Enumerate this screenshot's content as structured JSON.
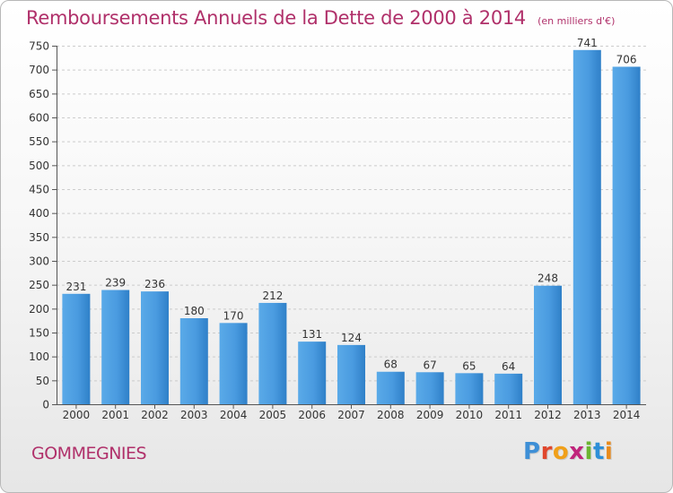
{
  "title": "Remboursements Annuels de la Dette de 2000 à 2014",
  "unit": "(en milliers d'€)",
  "town": "GOMMEGNIES",
  "logo": {
    "letters": [
      "P",
      "r",
      "o",
      "x",
      "i",
      "t",
      "i"
    ],
    "colors": [
      "#3e8fd6",
      "#e0472d",
      "#f0a01a",
      "#c0247b",
      "#6bb531",
      "#2e8fd8",
      "#e98b1d"
    ]
  },
  "chart_data": {
    "type": "bar",
    "categories": [
      "2000",
      "2001",
      "2002",
      "2003",
      "2004",
      "2005",
      "2006",
      "2007",
      "2008",
      "2009",
      "2010",
      "2011",
      "2012",
      "2013",
      "2014"
    ],
    "values": [
      231,
      239,
      236,
      180,
      170,
      212,
      131,
      124,
      68,
      67,
      65,
      64,
      248,
      741,
      706
    ],
    "data_labels": [
      "231",
      "239",
      "236",
      "180",
      "170",
      "212",
      "131",
      "124",
      "68",
      "67",
      "65",
      "64",
      "248",
      "741",
      "706"
    ],
    "ylim": [
      0,
      750
    ],
    "yticks": [
      0,
      50,
      100,
      150,
      200,
      250,
      300,
      350,
      400,
      450,
      500,
      550,
      600,
      650,
      700,
      750
    ],
    "grid": true,
    "bar_color": "#4a9be0",
    "bar_color_dark": "#2a78be"
  }
}
